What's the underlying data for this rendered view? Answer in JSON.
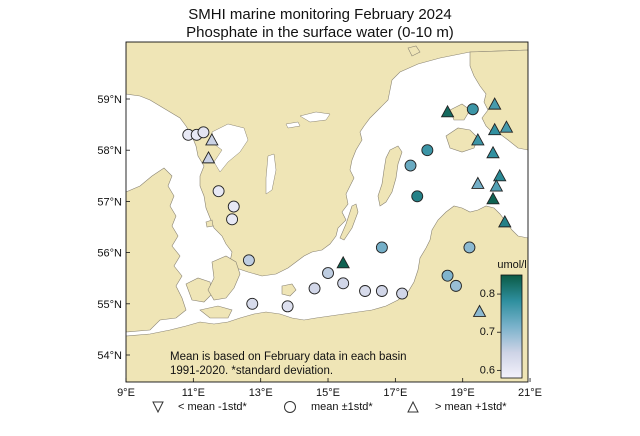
{
  "title": "SMHI marine monitoring February 2024",
  "subtitle": "Phosphate in the surface water (0-10 m)",
  "note_line1": "Mean is based on February data in each basin",
  "note_line2": "1991-2020. *standard deviation.",
  "lat_labels": [
    "59°N",
    "58°N",
    "57°N",
    "56°N",
    "55°N",
    "54°N"
  ],
  "lat_values": [
    59,
    58,
    57,
    56,
    55,
    54
  ],
  "lon_labels": [
    "9°E",
    "11°E",
    "13°E",
    "15°E",
    "17°E",
    "19°E",
    "21°E"
  ],
  "lon_values": [
    9,
    11,
    13,
    15,
    17,
    19,
    21
  ],
  "colorbar": {
    "title": "umol/l",
    "ticks": [
      "0.8",
      "0.7",
      "0.6"
    ],
    "tick_values": [
      0.8,
      0.7,
      0.6
    ],
    "min": 0.58,
    "max": 0.85
  },
  "legend": {
    "below": "< mean -1std*",
    "within": "mean ±1std*",
    "above": "> mean +1std*"
  },
  "colors": {
    "land": "#efe5b6",
    "sea": "#ffffff",
    "coast": "#8a8474",
    "low": "#f4f2fb",
    "mid": "#3c9cb2",
    "high": "#0d5a45"
  },
  "stations": [
    {
      "lon": 10.85,
      "lat": 58.3,
      "shape": "circle",
      "value": 0.6
    },
    {
      "lon": 11.1,
      "lat": 58.3,
      "shape": "circle",
      "value": 0.6
    },
    {
      "lon": 11.3,
      "lat": 58.35,
      "shape": "circle",
      "value": 0.61
    },
    {
      "lon": 11.55,
      "lat": 58.2,
      "shape": "triangle",
      "value": 0.65
    },
    {
      "lon": 11.45,
      "lat": 57.85,
      "shape": "triangle",
      "value": 0.65
    },
    {
      "lon": 11.75,
      "lat": 57.2,
      "shape": "circle",
      "value": 0.6
    },
    {
      "lon": 12.2,
      "lat": 56.9,
      "shape": "circle",
      "value": 0.6
    },
    {
      "lon": 12.15,
      "lat": 56.65,
      "shape": "circle",
      "value": 0.6
    },
    {
      "lon": 12.65,
      "lat": 55.85,
      "shape": "circle",
      "value": 0.66
    },
    {
      "lon": 12.75,
      "lat": 55.0,
      "shape": "circle",
      "value": 0.63
    },
    {
      "lon": 13.8,
      "lat": 54.95,
      "shape": "circle",
      "value": 0.62
    },
    {
      "lon": 14.6,
      "lat": 55.3,
      "shape": "circle",
      "value": 0.64
    },
    {
      "lon": 15.0,
      "lat": 55.6,
      "shape": "circle",
      "value": 0.66
    },
    {
      "lon": 15.45,
      "lat": 55.8,
      "shape": "triangle",
      "value": 0.84
    },
    {
      "lon": 15.45,
      "lat": 55.4,
      "shape": "circle",
      "value": 0.64
    },
    {
      "lon": 16.1,
      "lat": 55.25,
      "shape": "circle",
      "value": 0.63
    },
    {
      "lon": 16.6,
      "lat": 55.25,
      "shape": "circle",
      "value": 0.64
    },
    {
      "lon": 17.2,
      "lat": 55.2,
      "shape": "circle",
      "value": 0.64
    },
    {
      "lon": 16.6,
      "lat": 56.1,
      "shape": "circle",
      "value": 0.72
    },
    {
      "lon": 17.45,
      "lat": 57.7,
      "shape": "circle",
      "value": 0.73
    },
    {
      "lon": 17.95,
      "lat": 58.0,
      "shape": "circle",
      "value": 0.77
    },
    {
      "lon": 18.55,
      "lat": 58.75,
      "shape": "triangle",
      "value": 0.83
    },
    {
      "lon": 19.3,
      "lat": 58.8,
      "shape": "circle",
      "value": 0.77
    },
    {
      "lon": 19.95,
      "lat": 58.9,
      "shape": "triangle",
      "value": 0.76
    },
    {
      "lon": 19.95,
      "lat": 58.4,
      "shape": "triangle",
      "value": 0.78
    },
    {
      "lon": 19.45,
      "lat": 58.2,
      "shape": "triangle",
      "value": 0.77
    },
    {
      "lon": 20.3,
      "lat": 58.45,
      "shape": "triangle",
      "value": 0.76
    },
    {
      "lon": 17.65,
      "lat": 57.1,
      "shape": "circle",
      "value": 0.8
    },
    {
      "lon": 19.45,
      "lat": 57.35,
      "shape": "triangle",
      "value": 0.72
    },
    {
      "lon": 19.9,
      "lat": 57.95,
      "shape": "triangle",
      "value": 0.78
    },
    {
      "lon": 20.1,
      "lat": 57.5,
      "shape": "triangle",
      "value": 0.79
    },
    {
      "lon": 20.0,
      "lat": 57.3,
      "shape": "triangle",
      "value": 0.75
    },
    {
      "lon": 19.9,
      "lat": 57.05,
      "shape": "triangle",
      "value": 0.84
    },
    {
      "lon": 20.25,
      "lat": 56.6,
      "shape": "triangle",
      "value": 0.8
    },
    {
      "lon": 19.2,
      "lat": 56.1,
      "shape": "circle",
      "value": 0.7
    },
    {
      "lon": 18.55,
      "lat": 55.55,
      "shape": "circle",
      "value": 0.71
    },
    {
      "lon": 18.8,
      "lat": 55.35,
      "shape": "circle",
      "value": 0.69
    },
    {
      "lon": 19.5,
      "lat": 54.85,
      "shape": "triangle",
      "value": 0.7
    }
  ]
}
